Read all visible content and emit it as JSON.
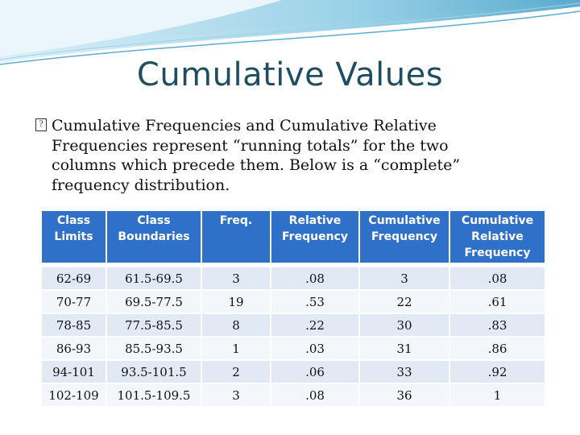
{
  "title": "Cumulative Values",
  "bullet": {
    "icon": "box-bullet-icon",
    "lines": [
      "Cumulative Frequencies and Cumulative Relative",
      "Frequencies represent “running totals” for the two",
      "columns which precede them. Below is a “complete”",
      "frequency distribution."
    ]
  },
  "table": {
    "headers": [
      [
        "Class",
        "Limits"
      ],
      [
        "Class",
        "Boundaries"
      ],
      [
        "Freq.",
        ""
      ],
      [
        "Relative",
        "Frequency"
      ],
      [
        "Cumulative",
        "Frequency"
      ],
      [
        "Cumulative",
        "Relative",
        "Frequency"
      ]
    ],
    "rows": [
      [
        "62-69",
        "61.5-69.5",
        "3",
        ".08",
        "3",
        ".08"
      ],
      [
        "70-77",
        "69.5-77.5",
        "19",
        ".53",
        "22",
        ".61"
      ],
      [
        "78-85",
        "77.5-85.5",
        "8",
        ".22",
        "30",
        ".83"
      ],
      [
        "86-93",
        "85.5-93.5",
        "1",
        ".03",
        "31",
        ".86"
      ],
      [
        "94-101",
        "93.5-101.5",
        "2",
        ".06",
        "33",
        ".92"
      ],
      [
        "102-109",
        "101.5-109.5",
        "3",
        ".08",
        "36",
        "1"
      ]
    ],
    "header_color": "#2f71c8",
    "row_color_a": "#e1e9f5",
    "row_color_b": "#f3f6fb"
  },
  "theme": {
    "title_color": "#1f4e63",
    "swoosh_color": "#6fb6d6"
  }
}
